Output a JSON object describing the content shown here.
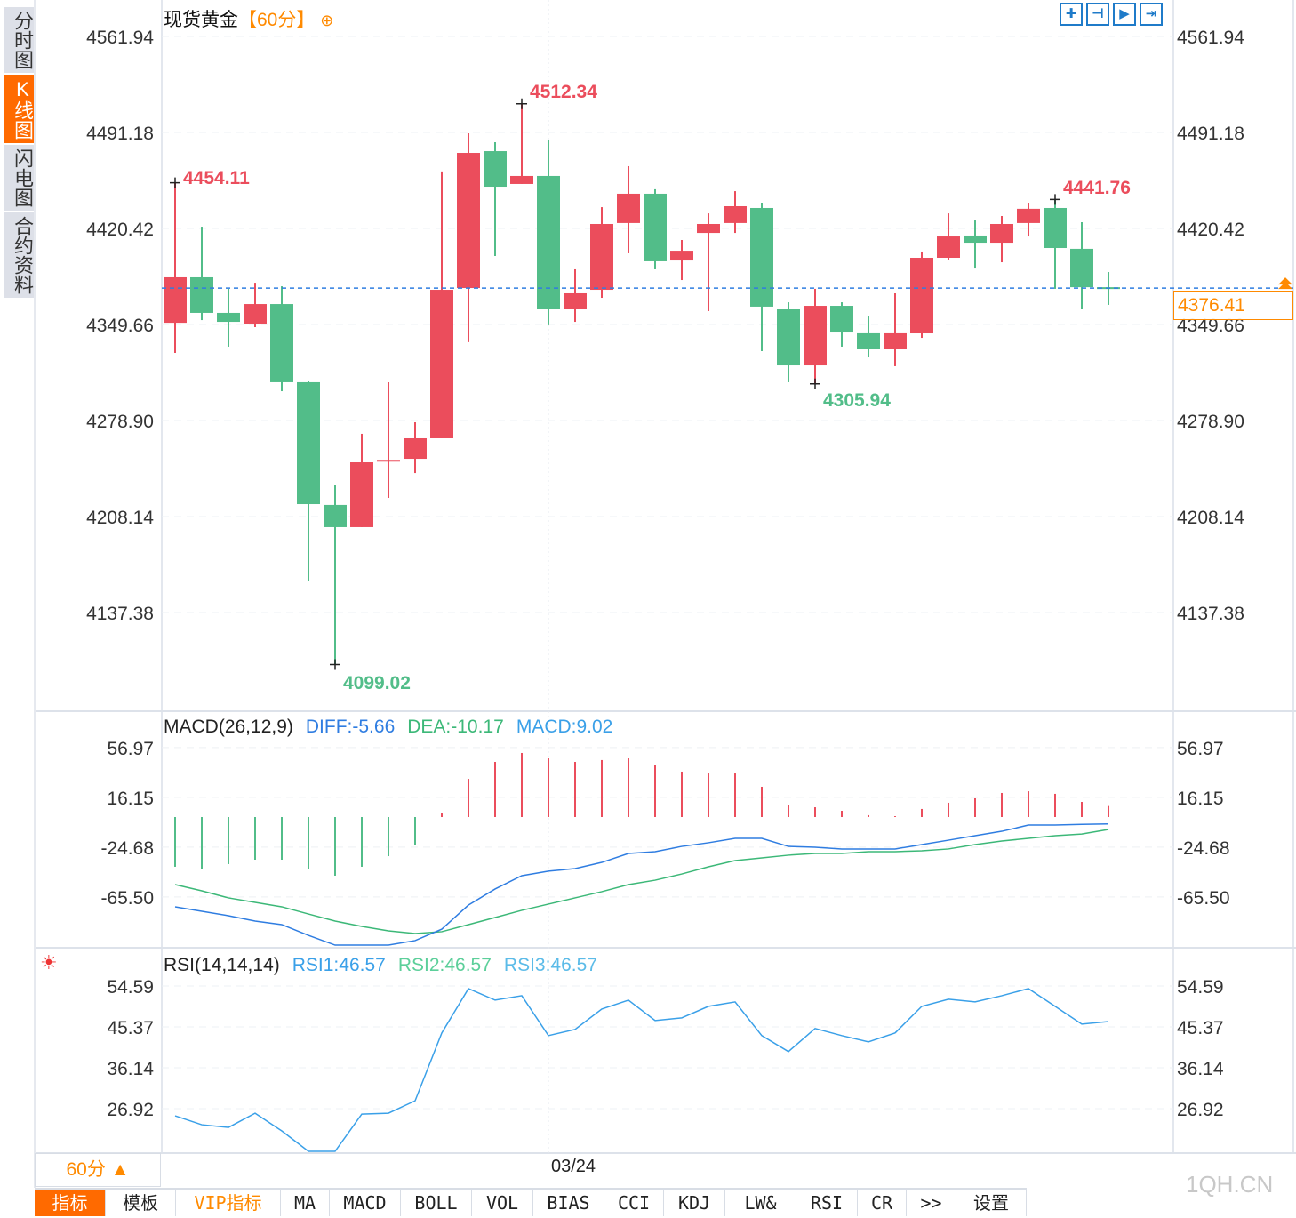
{
  "sidebar": {
    "tabs": [
      {
        "label": "分时图",
        "active": false
      },
      {
        "label": "K线图",
        "active": true
      },
      {
        "label": "闪电图",
        "active": false
      },
      {
        "label": "合约资料",
        "active": false
      }
    ]
  },
  "header": {
    "instrument": "现货黄金",
    "period": "【60分】",
    "add_icon": "circle-plus-icon"
  },
  "tools": [
    {
      "icon": "crosshair-icon",
      "glyph": "✚"
    },
    {
      "icon": "zoom-axis-icon",
      "glyph": "⊣"
    },
    {
      "icon": "play-axis-icon",
      "glyph": "▶"
    },
    {
      "icon": "jump-end-icon",
      "glyph": "⇥"
    }
  ],
  "colors": {
    "up": "#eb4d5c",
    "down": "#52bd89",
    "accent": "#ff6a00",
    "diff": "#2f7de1",
    "dea": "#3cb878",
    "rsi": "#3aa0e8",
    "price_line": "#2f7de1"
  },
  "current_price": "4376.41",
  "price_axis": {
    "ticks": [
      "4561.94",
      "4491.18",
      "4420.42",
      "4349.66",
      "4278.90",
      "4208.14",
      "4137.38"
    ]
  },
  "annotations": {
    "high_left": "4454.11",
    "high_mid": "4512.34",
    "high_right": "4441.76",
    "low_left": "4099.02",
    "low_right": "4305.94"
  },
  "macd": {
    "title": "MACD(26,12,9)",
    "diff": "DIFF:-5.66",
    "dea": "DEA:-10.17",
    "macd": "MACD:9.02",
    "ticks": [
      "56.97",
      "16.15",
      "-24.68",
      "-65.50"
    ]
  },
  "rsi": {
    "title": "RSI(14,14,14)",
    "rsi1": "RSI1:46.57",
    "rsi2": "RSI2:46.57",
    "rsi3": "RSI3:46.57",
    "ticks": [
      "54.59",
      "45.37",
      "36.14",
      "26.92"
    ]
  },
  "xaxis": {
    "date_label": "03/24",
    "period_selector": "60分 ▲"
  },
  "watermark": "1QH.CN",
  "toolbar": [
    "指标",
    "模板",
    "VIP指标",
    "MA",
    "MACD",
    "BOLL",
    "VOL",
    "BIAS",
    "CCI",
    "KDJ",
    "LW&",
    "RSI",
    "CR",
    ">>",
    "设置"
  ],
  "chart_data": {
    "type": "candlestick",
    "candles": [
      [
        4350.9,
        4384.4,
        4454.11,
        4328.7
      ],
      [
        4384.4,
        4358.2,
        4421.7,
        4352.9
      ],
      [
        4358.2,
        4351.6,
        4375.9,
        4333.3
      ],
      [
        4350.3,
        4364.7,
        4380.4,
        4347.7
      ],
      [
        4364.7,
        4307.1,
        4377.8,
        4300.5
      ],
      [
        4307.1,
        4217.3,
        4308.4,
        4161.0
      ],
      [
        4216.7,
        4200.3,
        4231.7,
        4099.02
      ],
      [
        4200.3,
        4248.1,
        4269.1,
        4200.3
      ],
      [
        4249.4,
        4249.9,
        4307.1,
        4221.9
      ],
      [
        4250.7,
        4265.8,
        4277.6,
        4240.2
      ],
      [
        4265.8,
        4375.2,
        4462.4,
        4265.8
      ],
      [
        4376.5,
        4476.1,
        4490.5,
        4336.6
      ],
      [
        4477.4,
        4451.2,
        4484.0,
        4400.1
      ],
      [
        4453.2,
        4459.1,
        4512.34,
        4453.2
      ],
      [
        4459.1,
        4361.4,
        4485.9,
        4349.7
      ],
      [
        4361.4,
        4372.6,
        4390.3,
        4351.6
      ],
      [
        4375.2,
        4423.7,
        4436.1,
        4369.3
      ],
      [
        4424.4,
        4446.0,
        4466.3,
        4402.1
      ],
      [
        4446.0,
        4396.2,
        4449.3,
        4390.3
      ],
      [
        4396.8,
        4404.0,
        4411.9,
        4382.4
      ],
      [
        4417.1,
        4423.7,
        4431.5,
        4359.5
      ],
      [
        4424.4,
        4436.8,
        4447.9,
        4417.1
      ],
      [
        4435.5,
        4362.8,
        4439.4,
        4330.0
      ],
      [
        4361.4,
        4319.5,
        4366.0,
        4307.1
      ],
      [
        4319.5,
        4363.4,
        4375.9,
        4305.94
      ],
      [
        4363.4,
        4344.4,
        4366.0,
        4333.3
      ],
      [
        4343.8,
        4331.4,
        4356.2,
        4325.4
      ],
      [
        4331.4,
        4343.8,
        4372.6,
        4318.9
      ],
      [
        4343.1,
        4398.8,
        4403.4,
        4339.8
      ],
      [
        4398.8,
        4414.5,
        4431.5,
        4397.5
      ],
      [
        4415.2,
        4409.9,
        4426.3,
        4390.9
      ],
      [
        4409.9,
        4423.7,
        4429.6,
        4395.5
      ],
      [
        4424.4,
        4434.9,
        4439.4,
        4414.5
      ],
      [
        4435.5,
        4406.0,
        4441.76,
        4375.9
      ],
      [
        4405.4,
        4377.1,
        4425.0,
        4361.4
      ],
      [
        4377.1,
        4376.41,
        4388.3,
        4364.1
      ]
    ],
    "candle_fields": [
      "open",
      "close",
      "high",
      "low"
    ],
    "price_range": [
      4068,
      4601
    ],
    "macd_hist": [
      -40.8,
      -42.3,
      -38.6,
      -35.0,
      -35.0,
      -43.0,
      -48.1,
      -40.8,
      -32.1,
      -22.6,
      2.9,
      31.3,
      45.2,
      52.5,
      48.1,
      45.2,
      46.7,
      48.1,
      43.0,
      37.2,
      35.7,
      35.7,
      24.8,
      10.2,
      8.0,
      5.1,
      1.5,
      0.7,
      6.6,
      11.7,
      15.3,
      19.7,
      21.1,
      19.0,
      12.4,
      9.02
    ],
    "diff": [
      -73.6,
      -77.3,
      -80.9,
      -85.3,
      -88.2,
      -97.0,
      -105.0,
      -105.0,
      -105.0,
      -101.3,
      -91.9,
      -72.2,
      -59.0,
      -48.1,
      -44.4,
      -42.3,
      -37.2,
      -29.9,
      -28.4,
      -24.1,
      -21.1,
      -17.5,
      -17.5,
      -24.1,
      -24.8,
      -26.2,
      -26.2,
      -26.2,
      -22.6,
      -19.0,
      -15.3,
      -11.7,
      -6.6,
      -6.6,
      -6.0,
      -5.66
    ],
    "dea": [
      -55.4,
      -60.5,
      -66.3,
      -70.0,
      -73.6,
      -79.5,
      -85.3,
      -89.7,
      -93.3,
      -95.5,
      -94.0,
      -88.2,
      -82.4,
      -76.5,
      -71.4,
      -66.3,
      -61.2,
      -55.4,
      -51.8,
      -46.7,
      -40.8,
      -35.7,
      -33.5,
      -31.3,
      -29.9,
      -29.9,
      -28.4,
      -28.4,
      -27.7,
      -26.2,
      -22.6,
      -19.7,
      -17.5,
      -15.3,
      -13.9,
      -10.17
    ],
    "rsi": [
      25.3,
      23.3,
      22.7,
      25.9,
      21.9,
      17.3,
      17.3,
      25.7,
      25.9,
      28.7,
      44.0,
      54.0,
      51.4,
      52.4,
      43.4,
      44.8,
      49.4,
      51.4,
      46.8,
      47.4,
      50.0,
      51.0,
      43.4,
      39.8,
      45.0,
      43.4,
      42.0,
      44.0,
      50.0,
      51.6,
      51.0,
      52.4,
      54.0,
      50.0,
      46.0,
      46.57
    ]
  }
}
